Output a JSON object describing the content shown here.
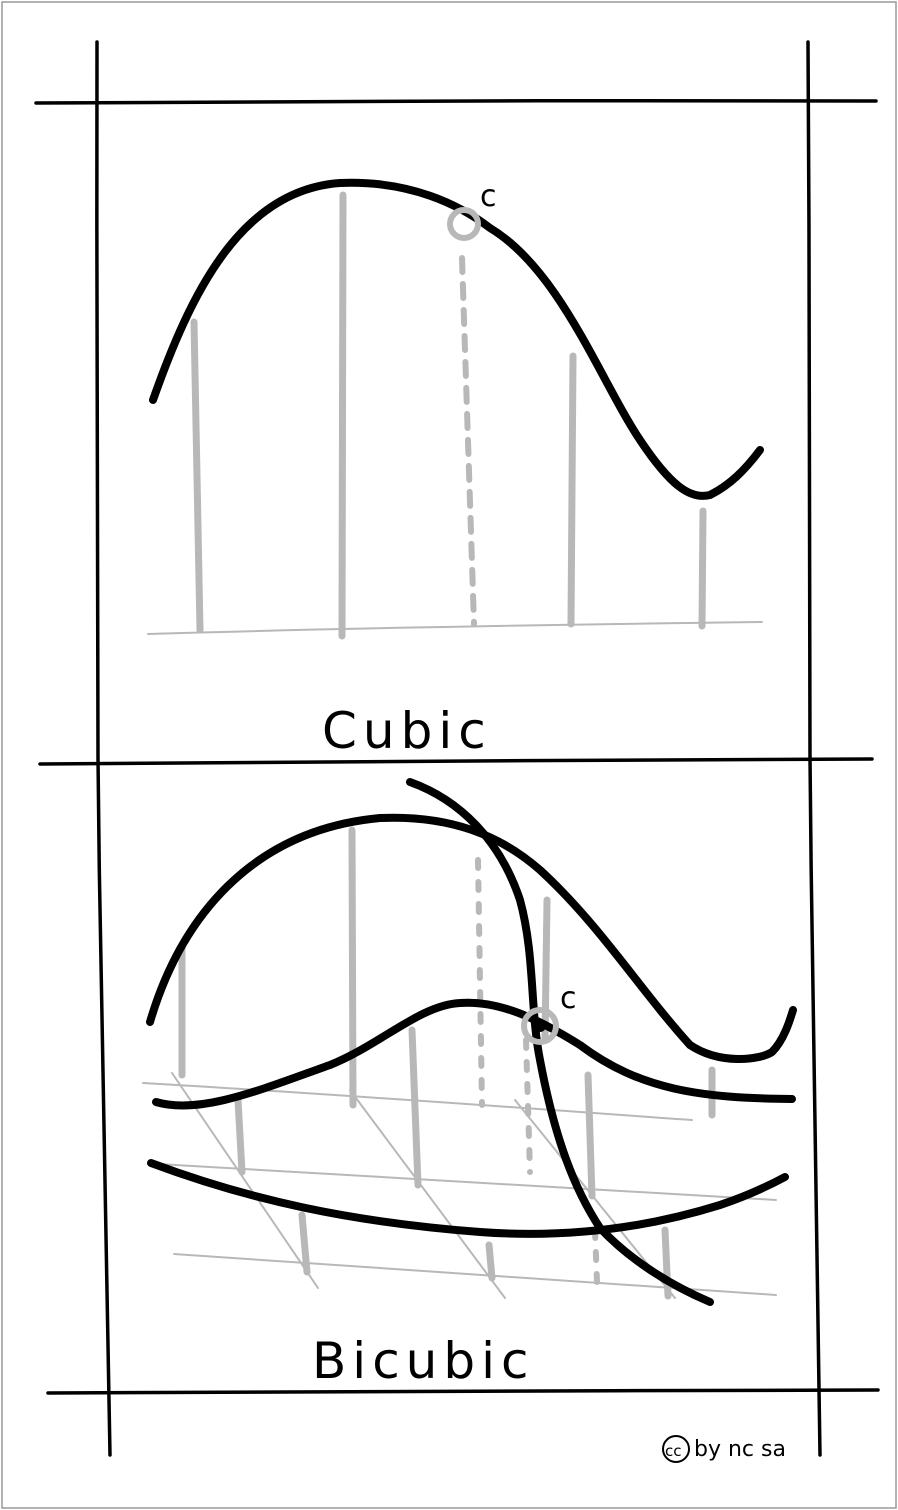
{
  "panels": {
    "cubic": {
      "title": "Cubic",
      "point_label": "c"
    },
    "bicubic": {
      "title": "Bicubic",
      "point_label": "c"
    }
  },
  "license": {
    "symbol": "cc",
    "text": "by nc sa"
  },
  "colors": {
    "ink": "#000000",
    "guide": "#b8b8b8",
    "background": "#ffffff"
  }
}
